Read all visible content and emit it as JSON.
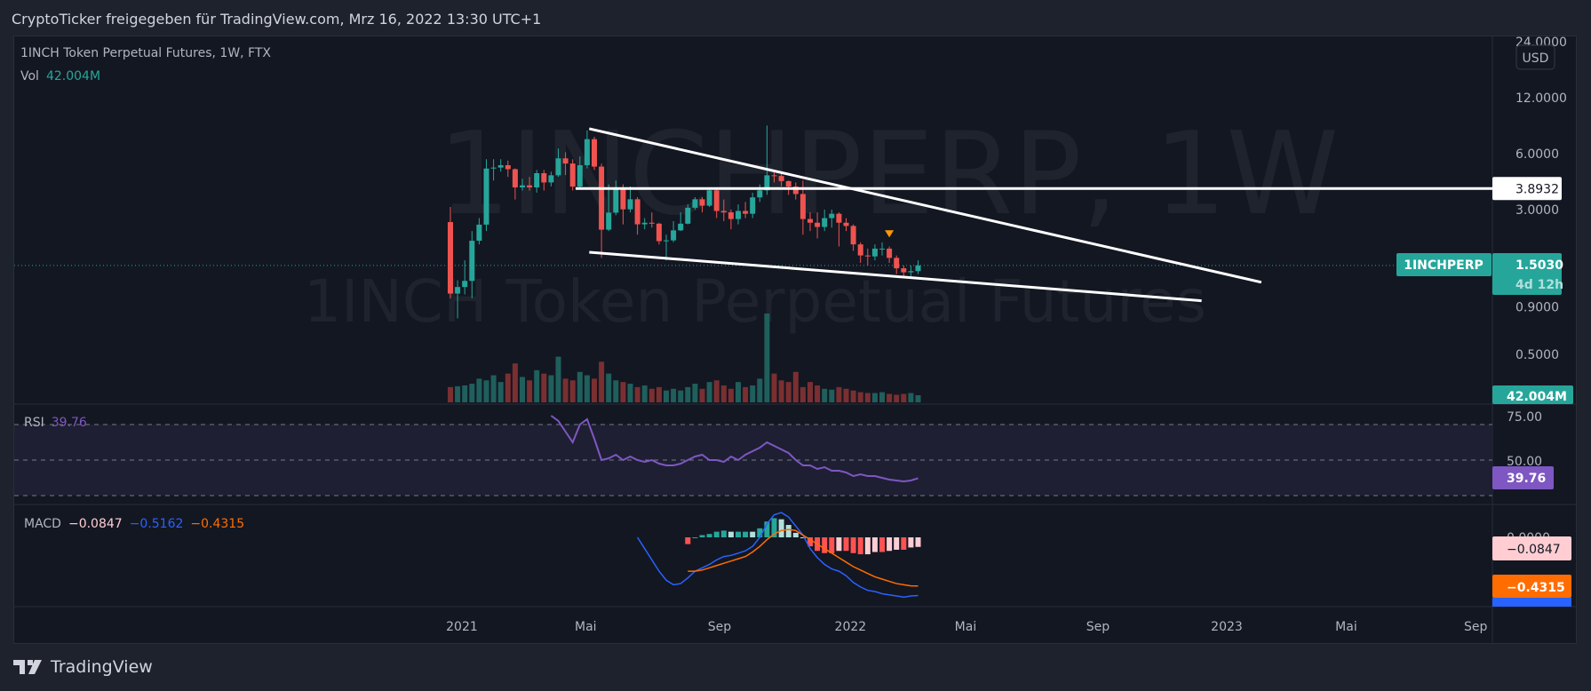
{
  "header": {
    "title": "CryptoTicker freigegeben für TradingView.com, Mrz 16, 2022 13:30 UTC+1"
  },
  "legend": {
    "symbol_line": "1INCH Token Perpetual Futures, 1W, FTX",
    "vol_label": "Vol",
    "vol_value": "42.004M"
  },
  "watermark": {
    "line1": "1INCHPERP, 1W",
    "line2": "1INCH Token Perpetual Futures"
  },
  "price_axis": {
    "currency": "USD",
    "ticks": [
      {
        "label": "24.0000",
        "value": 24
      },
      {
        "label": "12.0000",
        "value": 12
      },
      {
        "label": "6.0000",
        "value": 6
      },
      {
        "label": "3.0000",
        "value": 3
      },
      {
        "label": "0.9000",
        "value": 0.9
      },
      {
        "label": "0.5000",
        "value": 0.5
      }
    ]
  },
  "price_tags": {
    "hline": {
      "label": "3.8932",
      "value": 3.8932
    },
    "symbol": "1INCHPERP",
    "last_price": "1.5030",
    "countdown": "4d 12h",
    "volume": "42.004M"
  },
  "rsi": {
    "label": "RSI",
    "value": "39.76",
    "axis": [
      "75.00",
      "50.00"
    ],
    "start_index": 14,
    "values": [
      75,
      72,
      66,
      60,
      70,
      73,
      62,
      50,
      51,
      53,
      50,
      52,
      50,
      49,
      50,
      48,
      47,
      47,
      48,
      50,
      52,
      53,
      50,
      50,
      49,
      52,
      50,
      53,
      55,
      57,
      60,
      58,
      56,
      54,
      50,
      47,
      47,
      45,
      46,
      44,
      44,
      43,
      41,
      42,
      41,
      41,
      40,
      39,
      38.5,
      38,
      38.5,
      39.76
    ]
  },
  "macd": {
    "label": "MACD",
    "hist_value": "−0.0847",
    "macd_value": "−0.5162",
    "signal_value": "−0.4315",
    "axis_zero": "0.0000",
    "macd_start": 26,
    "macd_line": [
      0,
      -0.1,
      -0.2,
      -0.3,
      -0.38,
      -0.42,
      -0.41,
      -0.36,
      -0.3,
      -0.27,
      -0.24,
      -0.2,
      -0.17,
      -0.16,
      -0.14,
      -0.12,
      -0.08,
      0,
      0.12,
      0.2,
      0.22,
      0.18,
      0.1,
      0.02,
      -0.1,
      -0.18,
      -0.24,
      -0.28,
      -0.3,
      -0.34,
      -0.4,
      -0.44,
      -0.47,
      -0.48,
      -0.5,
      -0.51,
      -0.52,
      -0.53,
      -0.52,
      -0.5162
    ],
    "signal_start": 33,
    "signal_line": [
      -0.3,
      -0.3,
      -0.29,
      -0.27,
      -0.25,
      -0.23,
      -0.21,
      -0.19,
      -0.17,
      -0.13,
      -0.08,
      -0.02,
      0.03,
      0.06,
      0.07,
      0.06,
      0.02,
      -0.02,
      -0.06,
      -0.1,
      -0.14,
      -0.18,
      -0.22,
      -0.26,
      -0.29,
      -0.32,
      -0.35,
      -0.37,
      -0.39,
      -0.41,
      -0.42,
      -0.43,
      -0.4315
    ]
  },
  "time_axis": [
    {
      "label": "2021",
      "week": 1.6
    },
    {
      "label": "Mai",
      "week": 18.8
    },
    {
      "label": "Sep",
      "week": 37.4
    },
    {
      "label": "2022",
      "week": 55.6
    },
    {
      "label": "Mai",
      "week": 71.6
    },
    {
      "label": "Sep",
      "week": 90
    },
    {
      "label": "2023",
      "week": 107.9
    },
    {
      "label": "Mai",
      "week": 124.5
    },
    {
      "label": "Sep",
      "week": 142.5
    }
  ],
  "colors": {
    "up": "#26a69a",
    "down": "#ef5350",
    "rsi": "#7e57c2",
    "macd": "#2962ff",
    "signal": "#ff6d00",
    "hist_neg_rising": "#ffcdd2",
    "marker": "#ff9800"
  },
  "chart_data": {
    "type": "candlestick",
    "interval": "1W",
    "candles_ohlc": [
      [
        2.57,
        3.1,
        1.0,
        1.06
      ],
      [
        1.06,
        1.25,
        0.78,
        1.15
      ],
      [
        1.15,
        1.6,
        1.05,
        1.24
      ],
      [
        1.24,
        2.3,
        1.0,
        2.04
      ],
      [
        2.04,
        2.7,
        1.95,
        2.49
      ],
      [
        2.49,
        5.6,
        2.3,
        4.99
      ],
      [
        4.99,
        5.6,
        4.3,
        5.05
      ],
      [
        5.05,
        5.6,
        4.8,
        5.2
      ],
      [
        5.2,
        5.5,
        4.5,
        4.95
      ],
      [
        4.95,
        5.0,
        3.4,
        3.95
      ],
      [
        3.95,
        4.4,
        3.8,
        4.05
      ],
      [
        4.05,
        4.5,
        3.8,
        3.95
      ],
      [
        3.95,
        4.9,
        3.7,
        4.71
      ],
      [
        4.71,
        4.9,
        3.8,
        4.2
      ],
      [
        4.2,
        4.8,
        4.0,
        4.59
      ],
      [
        4.59,
        6.4,
        4.5,
        5.66
      ],
      [
        5.66,
        6.1,
        4.6,
        5.31
      ],
      [
        5.31,
        5.6,
        3.8,
        3.99
      ],
      [
        3.99,
        5.8,
        3.9,
        5.2
      ],
      [
        5.2,
        8.0,
        5.0,
        7.18
      ],
      [
        7.18,
        7.4,
        4.9,
        5.11
      ],
      [
        5.11,
        5.3,
        1.65,
        2.34
      ],
      [
        2.34,
        4.1,
        2.3,
        2.89
      ],
      [
        2.89,
        4.3,
        2.8,
        3.92
      ],
      [
        3.92,
        4.1,
        2.5,
        3.01
      ],
      [
        3.01,
        4.0,
        2.9,
        3.41
      ],
      [
        3.41,
        3.5,
        2.2,
        2.5
      ],
      [
        2.5,
        2.7,
        2.35,
        2.55
      ],
      [
        2.55,
        2.9,
        2.4,
        2.52
      ],
      [
        2.52,
        2.55,
        1.95,
        2.03
      ],
      [
        2.03,
        2.2,
        1.6,
        2.05
      ],
      [
        2.05,
        2.6,
        2.0,
        2.32
      ],
      [
        2.32,
        2.9,
        2.3,
        2.52
      ],
      [
        2.52,
        3.2,
        2.5,
        3.07
      ],
      [
        3.07,
        3.5,
        3.0,
        3.41
      ],
      [
        3.41,
        3.5,
        2.9,
        3.15
      ],
      [
        3.15,
        3.95,
        3.1,
        3.81
      ],
      [
        3.81,
        3.95,
        2.7,
        2.95
      ],
      [
        2.95,
        3.4,
        2.6,
        2.9
      ],
      [
        2.9,
        3.0,
        2.35,
        2.67
      ],
      [
        2.67,
        3.2,
        2.5,
        2.95
      ],
      [
        2.95,
        3.3,
        2.7,
        2.85
      ],
      [
        2.85,
        3.7,
        2.7,
        3.49
      ],
      [
        3.49,
        4.1,
        3.3,
        3.81
      ],
      [
        3.81,
        8.5,
        3.6,
        4.59
      ],
      [
        4.59,
        4.8,
        4.2,
        4.55
      ],
      [
        4.55,
        4.7,
        4.0,
        4.27
      ],
      [
        4.27,
        4.3,
        3.6,
        3.99
      ],
      [
        3.99,
        4.2,
        3.4,
        3.64
      ],
      [
        3.64,
        4.3,
        2.2,
        2.67
      ],
      [
        2.67,
        2.9,
        2.3,
        2.55
      ],
      [
        2.55,
        2.9,
        2.1,
        2.42
      ],
      [
        2.42,
        3.0,
        2.3,
        2.7
      ],
      [
        2.7,
        3.0,
        2.4,
        2.85
      ],
      [
        2.85,
        2.9,
        1.9,
        2.55
      ],
      [
        2.55,
        2.7,
        2.3,
        2.45
      ],
      [
        2.45,
        2.5,
        1.8,
        1.95
      ],
      [
        1.95,
        2.0,
        1.55,
        1.7
      ],
      [
        1.7,
        1.85,
        1.5,
        1.68
      ],
      [
        1.68,
        1.95,
        1.6,
        1.85
      ],
      [
        1.85,
        2.0,
        1.7,
        1.85
      ],
      [
        1.85,
        1.9,
        1.55,
        1.65
      ],
      [
        1.65,
        1.7,
        1.35,
        1.45
      ],
      [
        1.45,
        1.5,
        1.3,
        1.38
      ],
      [
        1.38,
        1.5,
        1.3,
        1.4
      ],
      [
        1.4,
        1.6,
        1.35,
        1.503
      ]
    ],
    "volume_millions": [
      90,
      95,
      100,
      110,
      140,
      130,
      160,
      120,
      170,
      230,
      150,
      130,
      190,
      170,
      160,
      270,
      140,
      130,
      180,
      160,
      140,
      240,
      170,
      130,
      120,
      110,
      90,
      100,
      80,
      90,
      70,
      80,
      70,
      90,
      110,
      80,
      120,
      130,
      100,
      80,
      120,
      90,
      100,
      140,
      525,
      170,
      130,
      120,
      180,
      90,
      120,
      100,
      80,
      75,
      90,
      80,
      70,
      60,
      55,
      55,
      60,
      50,
      45,
      50,
      55,
      42.004
    ],
    "y_scale": "log",
    "trendlines": [
      {
        "name": "upper-trendline",
        "from": {
          "week": 19.3,
          "price": 8.17
        },
        "to": {
          "week": 112.7,
          "price": 1.22
        }
      },
      {
        "name": "lower-trendline",
        "from": {
          "week": 19.3,
          "price": 1.77
        },
        "to": {
          "week": 104.4,
          "price": 0.97
        }
      }
    ],
    "horizontal_line": {
      "from_week": 17.4,
      "price": 3.8932
    },
    "marker": {
      "week": 61,
      "price": 2.2,
      "shape": "triangle-down"
    }
  }
}
